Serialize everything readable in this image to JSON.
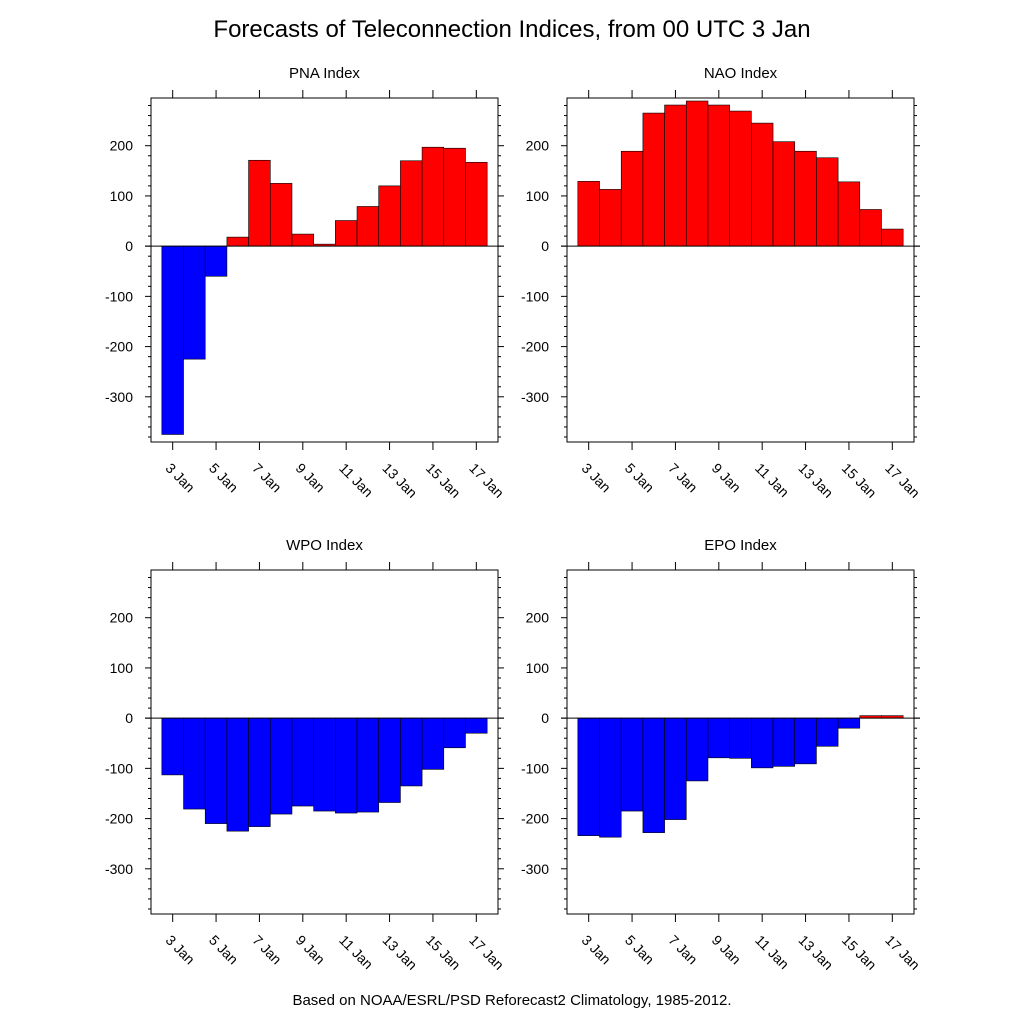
{
  "title": "Forecasts of Teleconnection Indices, from 00 UTC 3 Jan",
  "footer": "Based on NOAA/ESRL/PSD Reforecast2 Climatology, 1985-2012.",
  "colors": {
    "positive": "#ff0000",
    "negative": "#0000ff",
    "edge": "#000000"
  },
  "chart_data": [
    {
      "type": "bar",
      "title": "PNA Index",
      "categories": [
        "3 Jan",
        "4 Jan",
        "5 Jan",
        "6 Jan",
        "7 Jan",
        "8 Jan",
        "9 Jan",
        "10 Jan",
        "11 Jan",
        "12 Jan",
        "13 Jan",
        "14 Jan",
        "15 Jan",
        "16 Jan",
        "17 Jan"
      ],
      "x_tick_labels": [
        "3 Jan",
        "5 Jan",
        "7 Jan",
        "9 Jan",
        "11 Jan",
        "13 Jan",
        "15 Jan",
        "17 Jan"
      ],
      "values": [
        -375,
        -225,
        -60,
        18,
        171,
        125,
        24,
        4,
        51,
        79,
        120,
        170,
        197,
        195,
        167
      ],
      "ylim": [
        -390,
        295
      ],
      "y_ticks": [
        -300,
        -200,
        -100,
        0,
        100,
        200
      ]
    },
    {
      "type": "bar",
      "title": "NAO Index",
      "categories": [
        "3 Jan",
        "4 Jan",
        "5 Jan",
        "6 Jan",
        "7 Jan",
        "8 Jan",
        "9 Jan",
        "10 Jan",
        "11 Jan",
        "12 Jan",
        "13 Jan",
        "14 Jan",
        "15 Jan",
        "16 Jan",
        "17 Jan"
      ],
      "x_tick_labels": [
        "3 Jan",
        "5 Jan",
        "7 Jan",
        "9 Jan",
        "11 Jan",
        "13 Jan",
        "15 Jan",
        "17 Jan"
      ],
      "values": [
        129,
        113,
        189,
        265,
        281,
        289,
        281,
        269,
        245,
        208,
        189,
        176,
        128,
        73,
        34
      ],
      "ylim": [
        -390,
        295
      ],
      "y_ticks": [
        -300,
        -200,
        -100,
        0,
        100,
        200
      ]
    },
    {
      "type": "bar",
      "title": "WPO Index",
      "categories": [
        "3 Jan",
        "4 Jan",
        "5 Jan",
        "6 Jan",
        "7 Jan",
        "8 Jan",
        "9 Jan",
        "10 Jan",
        "11 Jan",
        "12 Jan",
        "13 Jan",
        "14 Jan",
        "15 Jan",
        "16 Jan",
        "17 Jan"
      ],
      "x_tick_labels": [
        "3 Jan",
        "5 Jan",
        "7 Jan",
        "9 Jan",
        "11 Jan",
        "13 Jan",
        "15 Jan",
        "17 Jan"
      ],
      "values": [
        -113,
        -181,
        -210,
        -225,
        -216,
        -191,
        -175,
        -185,
        -189,
        -187,
        -168,
        -135,
        -102,
        -59,
        -30
      ],
      "ylim": [
        -390,
        295
      ],
      "y_ticks": [
        -300,
        -200,
        -100,
        0,
        100,
        200
      ]
    },
    {
      "type": "bar",
      "title": "EPO Index",
      "categories": [
        "3 Jan",
        "4 Jan",
        "5 Jan",
        "6 Jan",
        "7 Jan",
        "8 Jan",
        "9 Jan",
        "10 Jan",
        "11 Jan",
        "12 Jan",
        "13 Jan",
        "14 Jan",
        "15 Jan",
        "16 Jan",
        "17 Jan"
      ],
      "x_tick_labels": [
        "3 Jan",
        "5 Jan",
        "7 Jan",
        "9 Jan",
        "11 Jan",
        "13 Jan",
        "15 Jan",
        "17 Jan"
      ],
      "values": [
        -234,
        -237,
        -185,
        -228,
        -202,
        -125,
        -79,
        -80,
        -99,
        -96,
        -91,
        -56,
        -20,
        5,
        5
      ],
      "ylim": [
        -390,
        295
      ],
      "y_ticks": [
        -300,
        -200,
        -100,
        0,
        100,
        200
      ]
    }
  ]
}
